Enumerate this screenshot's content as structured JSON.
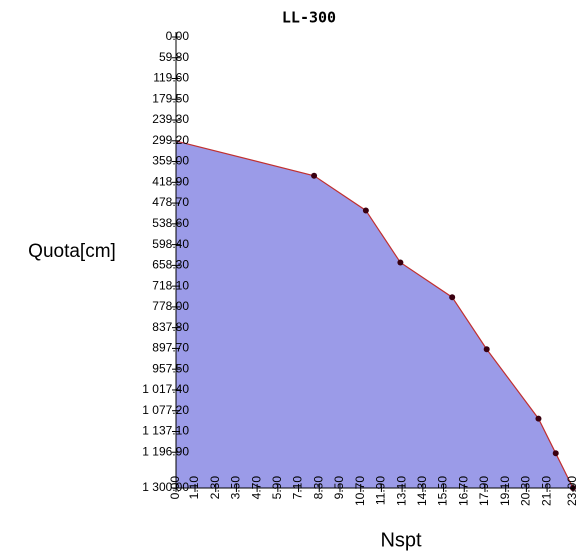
{
  "chart_data": {
    "type": "area",
    "title": "LL-300",
    "x_label": "Nspt",
    "y_label": "Quota[cm]",
    "y_inverted": true,
    "series": [
      {
        "name": null,
        "color": "#9b9be8",
        "line_color": "#c03030",
        "marker_color": "#3a0010",
        "x": [
          0,
          8.0,
          11.0,
          13.0,
          16.0,
          18.0,
          21.0,
          22.0,
          23.0
        ],
        "values": [
          300,
          400,
          500,
          650,
          750,
          900,
          1100,
          1200,
          1300
        ],
        "markers": [
          false,
          true,
          true,
          true,
          true,
          true,
          true,
          true,
          true
        ]
      }
    ],
    "xlim": [
      0,
      23
    ],
    "xticks": [
      {
        "value": 0,
        "label": "0.00"
      },
      {
        "value": 1.1,
        "label": "1.10"
      },
      {
        "value": 2.3,
        "label": "2.30"
      },
      {
        "value": 3.5,
        "label": "3.50"
      },
      {
        "value": 4.7,
        "label": "4.70"
      },
      {
        "value": 5.9,
        "label": "5.90"
      },
      {
        "value": 7.1,
        "label": "7.10"
      },
      {
        "value": 8.3,
        "label": "8.30"
      },
      {
        "value": 9.5,
        "label": "9.50"
      },
      {
        "value": 10.7,
        "label": "10.70"
      },
      {
        "value": 11.9,
        "label": "11.90"
      },
      {
        "value": 13.1,
        "label": "13.10"
      },
      {
        "value": 14.3,
        "label": "14.30"
      },
      {
        "value": 15.5,
        "label": "15.50"
      },
      {
        "value": 16.7,
        "label": "16.70"
      },
      {
        "value": 17.9,
        "label": "17.90"
      },
      {
        "value": 19.1,
        "label": "19.10"
      },
      {
        "value": 20.3,
        "label": "20.30"
      },
      {
        "value": 21.5,
        "label": "21.50"
      },
      {
        "value": 23,
        "label": "23.00"
      }
    ],
    "ylim": [
      0,
      1300
    ],
    "yticks": [
      {
        "value": 0,
        "label": "0.00"
      },
      {
        "value": 59.8,
        "label": "59.80"
      },
      {
        "value": 119.6,
        "label": "119.60"
      },
      {
        "value": 179.5,
        "label": "179.50"
      },
      {
        "value": 239.3,
        "label": "239.30"
      },
      {
        "value": 299.2,
        "label": "299.20"
      },
      {
        "value": 359,
        "label": "359.00"
      },
      {
        "value": 418.9,
        "label": "418.90"
      },
      {
        "value": 478.7,
        "label": "478.70"
      },
      {
        "value": 538.6,
        "label": "538.60"
      },
      {
        "value": 598.4,
        "label": "598.40"
      },
      {
        "value": 658.3,
        "label": "658.30"
      },
      {
        "value": 718.1,
        "label": "718.10"
      },
      {
        "value": 778,
        "label": "778.00"
      },
      {
        "value": 837.8,
        "label": "837.80"
      },
      {
        "value": 897.7,
        "label": "897.70"
      },
      {
        "value": 957.5,
        "label": "957.50"
      },
      {
        "value": 1017.4,
        "label": "1 017.40"
      },
      {
        "value": 1077.2,
        "label": "1 077.20"
      },
      {
        "value": 1137.1,
        "label": "1 137.10"
      },
      {
        "value": 1196.9,
        "label": "1 196.90"
      },
      {
        "value": 1300,
        "label": "1 300.00"
      }
    ]
  }
}
